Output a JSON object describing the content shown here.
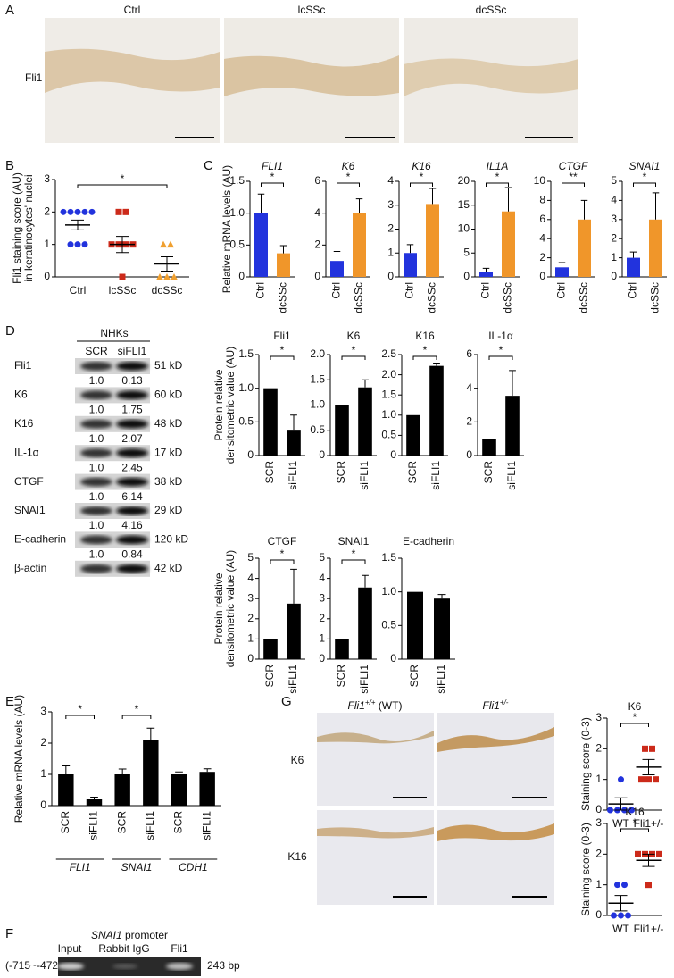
{
  "panel_labels": [
    "A",
    "B",
    "C",
    "D",
    "E",
    "F",
    "G"
  ],
  "histology": {
    "columns": [
      "Ctrl",
      "lcSSc",
      "dcSSc"
    ],
    "row": "Fli1"
  },
  "blot": {
    "header": "NHKs",
    "lanes": [
      "SCR",
      "siFLI1"
    ],
    "rows": [
      {
        "protein": "Fli1",
        "size": "51 kD",
        "ratios": [
          "1.0",
          "0.13"
        ]
      },
      {
        "protein": "K6",
        "size": "60 kD",
        "ratios": [
          "1.0",
          "1.75"
        ]
      },
      {
        "protein": "K16",
        "size": "48 kD",
        "ratios": [
          "1.0",
          "2.07"
        ]
      },
      {
        "protein": "IL-1α",
        "size": "17 kD",
        "ratios": [
          "1.0",
          "2.45"
        ]
      },
      {
        "protein": "CTGF",
        "size": "38 kD",
        "ratios": [
          "1.0",
          "6.14"
        ]
      },
      {
        "protein": "SNAI1",
        "size": "29 kD",
        "ratios": [
          "1.0",
          "4.16"
        ]
      },
      {
        "protein": "E-cadherin",
        "size": "120 kD",
        "ratios": [
          "1.0",
          "0.84"
        ]
      },
      {
        "protein": "β-actin",
        "size": "42 kD"
      }
    ]
  },
  "chip": {
    "gene": "SNAI1",
    "rest": " promoter",
    "lanes": [
      "Input",
      "Rabbit IgG",
      "Fli1"
    ],
    "region": "(-715~-472)",
    "size": "243 bp"
  },
  "mouse": {
    "columns": [
      {
        "gene": "Fli1",
        "sup": "+/+",
        "rest": " (WT)"
      },
      {
        "gene": "Fli1",
        "sup": "+/-"
      }
    ],
    "rows": [
      "K6",
      "K16"
    ]
  },
  "chart_data": [
    {
      "type": "dot",
      "ylabel": [
        "Fli1 staining score (AU)",
        "in keratinocytes' nuclei"
      ],
      "categories": [
        "Ctrl",
        "lcSSc",
        "dcSSc"
      ],
      "points": [
        [
          2,
          2,
          2,
          2,
          2,
          1,
          1,
          1
        ],
        [
          2,
          2,
          1,
          1,
          1,
          1,
          0
        ],
        [
          1,
          1,
          0,
          0,
          0
        ]
      ],
      "means": [
        1.6,
        1.0,
        0.4
      ],
      "errors": [
        0.15,
        0.25,
        0.22
      ],
      "colors": [
        "#2233dd",
        "#cc2a1a",
        "#f0a030"
      ],
      "markers": [
        "circle",
        "square",
        "triangle"
      ],
      "ylim": [
        0,
        3
      ],
      "yticks": [
        0,
        1,
        2,
        3
      ],
      "sig": "*"
    },
    {
      "type": "bar",
      "title": "FLI1",
      "italic_title": true,
      "ylabel": [
        "Relative mRNA levels (AU)"
      ],
      "categories": [
        "Ctrl",
        "dcSSc"
      ],
      "values": [
        1.0,
        0.37
      ],
      "errors": [
        0.3,
        0.12
      ],
      "colors": [
        "#2233dd",
        "#f0962a"
      ],
      "ylim": [
        0,
        1.5
      ],
      "yticks": [
        0,
        0.5,
        {
          "value": 1,
          "label": "1.0"
        },
        1.5
      ],
      "sig": "*",
      "rotate_categories": true
    },
    {
      "type": "bar",
      "title": "K6",
      "italic_title": true,
      "categories": [
        "Ctrl",
        "dcSSc"
      ],
      "values": [
        1,
        4
      ],
      "errors": [
        0.6,
        0.9
      ],
      "colors": [
        "#2233dd",
        "#f0962a"
      ],
      "ylim": [
        0,
        6
      ],
      "yticks": [
        0,
        2,
        4,
        6
      ],
      "sig": "*",
      "rotate_categories": true
    },
    {
      "type": "bar",
      "title": "K16",
      "italic_title": true,
      "categories": [
        "Ctrl",
        "dcSSc"
      ],
      "values": [
        1,
        3.05
      ],
      "errors": [
        0.35,
        0.65
      ],
      "colors": [
        "#2233dd",
        "#f0962a"
      ],
      "ylim": [
        0,
        4
      ],
      "yticks": [
        0,
        1,
        2,
        3,
        4
      ],
      "sig": "*",
      "rotate_categories": true
    },
    {
      "type": "bar",
      "title": "IL1A",
      "italic_title": true,
      "categories": [
        "Ctrl",
        "dcSSc"
      ],
      "values": [
        1,
        13.7
      ],
      "errors": [
        0.8,
        5
      ],
      "colors": [
        "#2233dd",
        "#f0962a"
      ],
      "ylim": [
        0,
        20
      ],
      "yticks": [
        0,
        5,
        10,
        15,
        20
      ],
      "sig": "*",
      "rotate_categories": true
    },
    {
      "type": "bar",
      "title": "CTGF",
      "italic_title": true,
      "categories": [
        "Ctrl",
        "dcSSc"
      ],
      "values": [
        1,
        6
      ],
      "errors": [
        0.5,
        2
      ],
      "colors": [
        "#2233dd",
        "#f0962a"
      ],
      "ylim": [
        0,
        10
      ],
      "yticks": [
        0,
        2,
        4,
        6,
        8,
        10
      ],
      "sig": "**",
      "rotate_categories": true
    },
    {
      "type": "bar",
      "title": "SNAI1",
      "italic_title": true,
      "categories": [
        "Ctrl",
        "dcSSc"
      ],
      "values": [
        1,
        3
      ],
      "errors": [
        0.3,
        1.4
      ],
      "colors": [
        "#2233dd",
        "#f0962a"
      ],
      "ylim": [
        0,
        5
      ],
      "yticks": [
        0,
        1,
        2,
        3,
        4,
        5
      ],
      "sig": "*",
      "rotate_categories": true
    },
    {
      "type": "bar",
      "title": "Fli1",
      "ylabel": [
        "Protein relative",
        "densitometric value (AU)"
      ],
      "categories": [
        "SCR",
        "siFLI1"
      ],
      "values": [
        1,
        0.37
      ],
      "errors": [
        null,
        0.23
      ],
      "color": "#000000",
      "ylim": [
        0,
        1.5
      ],
      "yticks": [
        0,
        0.5,
        {
          "value": 1,
          "label": "1.0"
        },
        1.5
      ],
      "sig": "*",
      "rotate_categories": true
    },
    {
      "type": "bar",
      "title": "K6",
      "categories": [
        "SCR",
        "siFLI1"
      ],
      "values": [
        1,
        1.35
      ],
      "errors": [
        null,
        0.15
      ],
      "color": "#000000",
      "ylim": [
        0,
        2
      ],
      "yticks": [
        0,
        0.5,
        {
          "value": 1,
          "label": "1.0"
        },
        1.5,
        {
          "value": 2,
          "label": "2.0"
        }
      ],
      "sig": "*",
      "rotate_categories": true
    },
    {
      "type": "bar",
      "title": "K16",
      "categories": [
        "SCR",
        "siFLI1"
      ],
      "values": [
        1,
        2.22
      ],
      "errors": [
        null,
        0.07
      ],
      "color": "#000000",
      "ylim": [
        0,
        2.5
      ],
      "yticks": [
        0,
        0.5,
        {
          "value": 1,
          "label": "1.0"
        },
        1.5,
        {
          "value": 2,
          "label": "2.0"
        },
        2.5
      ],
      "sig": "*",
      "rotate_categories": true
    },
    {
      "type": "bar",
      "title": "IL-1α",
      "categories": [
        "SCR",
        "siFLI1"
      ],
      "values": [
        1,
        3.55
      ],
      "errors": [
        null,
        1.5
      ],
      "color": "#000000",
      "ylim": [
        0,
        6
      ],
      "yticks": [
        0,
        2,
        4,
        6
      ],
      "sig": "*",
      "rotate_categories": true
    },
    {
      "type": "bar",
      "title": "CTGF",
      "ylabel": [
        "Protein relative",
        "densitometric value (AU)"
      ],
      "categories": [
        "SCR",
        "siFLI1"
      ],
      "values": [
        1,
        2.75
      ],
      "errors": [
        null,
        1.7
      ],
      "color": "#000000",
      "ylim": [
        0,
        5
      ],
      "yticks": [
        0,
        1,
        2,
        3,
        4,
        5
      ],
      "sig": "*",
      "rotate_categories": true
    },
    {
      "type": "bar",
      "title": "SNAI1",
      "categories": [
        "SCR",
        "siFLI1"
      ],
      "values": [
        1,
        3.55
      ],
      "errors": [
        null,
        0.6
      ],
      "color": "#000000",
      "ylim": [
        0,
        5
      ],
      "yticks": [
        0,
        1,
        2,
        3,
        4,
        5
      ],
      "sig": "*",
      "rotate_categories": true
    },
    {
      "type": "bar",
      "title": "E-cadherin",
      "categories": [
        "SCR",
        "siFLI1"
      ],
      "values": [
        1,
        0.9
      ],
      "errors": [
        null,
        0.06
      ],
      "color": "#000000",
      "ylim": [
        0,
        1.5
      ],
      "yticks": [
        0,
        0.5,
        {
          "value": 1,
          "label": "1.0"
        },
        1.5
      ],
      "rotate_categories": true
    },
    {
      "type": "bar",
      "ylabel": [
        "Relative mRNA levels (AU)"
      ],
      "categories": [
        "SCR",
        "siFLI1",
        "SCR",
        "siFLI1",
        "SCR",
        "siFLI1"
      ],
      "values": [
        1,
        0.2,
        1,
        2.1,
        1,
        1.08
      ],
      "errors": [
        0.27,
        0.07,
        0.17,
        0.38,
        0.08,
        0.1
      ],
      "color": "#000000",
      "ylim": [
        0,
        3
      ],
      "yticks": [
        0,
        1,
        2,
        3
      ],
      "rotate_categories": true,
      "groups": [
        {
          "label": "FLI1",
          "sig": "*"
        },
        {
          "label": "SNAI1",
          "sig": "*"
        },
        {
          "label": "CDH1"
        }
      ]
    },
    {
      "type": "dot",
      "title": "K6",
      "ylabel": [
        "Staining score (0-3)"
      ],
      "categories": [
        "WT",
        "Fli1+/-"
      ],
      "points": [
        [
          1,
          0,
          0,
          0,
          0
        ],
        [
          2,
          2,
          1,
          1,
          1
        ]
      ],
      "means": [
        0.2,
        1.4
      ],
      "errors": [
        0.2,
        0.25
      ],
      "colors": [
        "#2233dd",
        "#cc2a1a"
      ],
      "markers": [
        "circle",
        "square"
      ],
      "ylim": [
        0,
        3
      ],
      "yticks": [
        0,
        1,
        2,
        3
      ],
      "sig": "*"
    },
    {
      "type": "dot",
      "title": "K16",
      "ylabel": [
        "Staining score (0-3)"
      ],
      "categories": [
        "WT",
        "Fli1+/-"
      ],
      "points": [
        [
          1,
          1,
          0,
          0,
          0
        ],
        [
          2,
          2,
          2,
          2,
          1
        ]
      ],
      "means": [
        0.4,
        1.8
      ],
      "errors": [
        0.25,
        0.2
      ],
      "colors": [
        "#2233dd",
        "#cc2a1a"
      ],
      "markers": [
        "circle",
        "square"
      ],
      "ylim": [
        0,
        3
      ],
      "yticks": [
        0,
        1,
        2,
        3
      ],
      "sig": "*"
    }
  ]
}
